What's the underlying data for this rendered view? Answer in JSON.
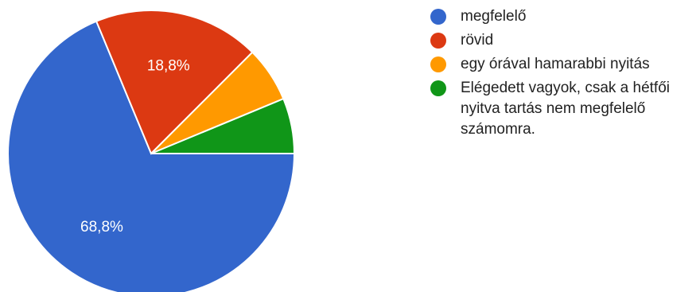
{
  "chart_data": {
    "type": "pie",
    "categories": [
      "megfelelő",
      "rövid",
      "egy órával hamarabbi nyitás",
      "Elégedett vagyok, csak a hétfői nyitva tartás nem megfelelő számomra."
    ],
    "values": [
      68.75,
      18.75,
      6.25,
      6.25
    ],
    "slice_labels": [
      "68,8%",
      "18,8%",
      "",
      ""
    ],
    "colors": [
      "#3366cc",
      "#dc3912",
      "#ff9900",
      "#109618"
    ],
    "legend_position": "right"
  }
}
